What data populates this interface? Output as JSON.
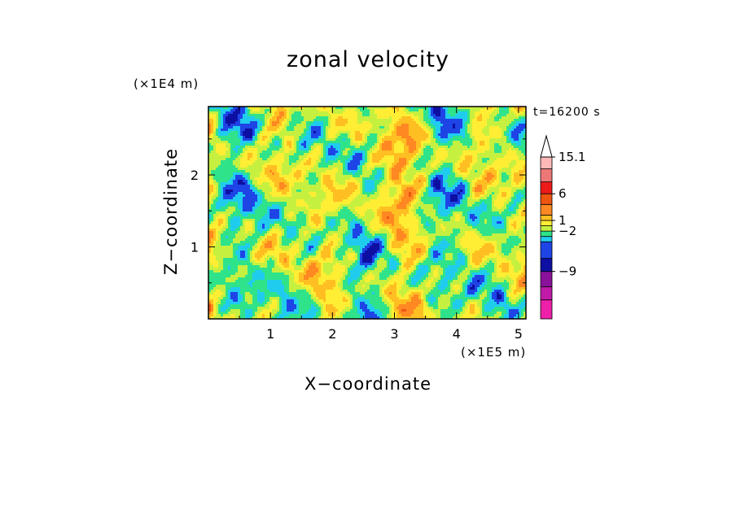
{
  "chart_data": {
    "type": "heatmap",
    "title": "zonal velocity",
    "xlabel": "X−coordinate",
    "ylabel": "Z−coordinate",
    "x_unit": "(×1E5 m)",
    "y_unit": "(×1E4 m)",
    "time_label": "t=16200 s",
    "xlim": [
      0,
      5.12
    ],
    "ylim": [
      0,
      2.95
    ],
    "x_ticks": [
      1,
      2,
      3,
      4,
      5
    ],
    "y_ticks": [
      1,
      2
    ],
    "colorbar": {
      "extend": "max",
      "labeled_levels": [
        "15.1",
        "6",
        "1",
        "−2",
        "−9"
      ],
      "colors": [
        "#ee1fa8",
        "#c01aa8",
        "#8a129a",
        "#0d0fa3",
        "#1e44e6",
        "#20ccee",
        "#2fe38a",
        "#c6f040",
        "#ffee33",
        "#ffbf22",
        "#ff8822",
        "#ee5511",
        "#ee1a1a",
        "#ee7777",
        "#ffb8b8"
      ]
    }
  }
}
